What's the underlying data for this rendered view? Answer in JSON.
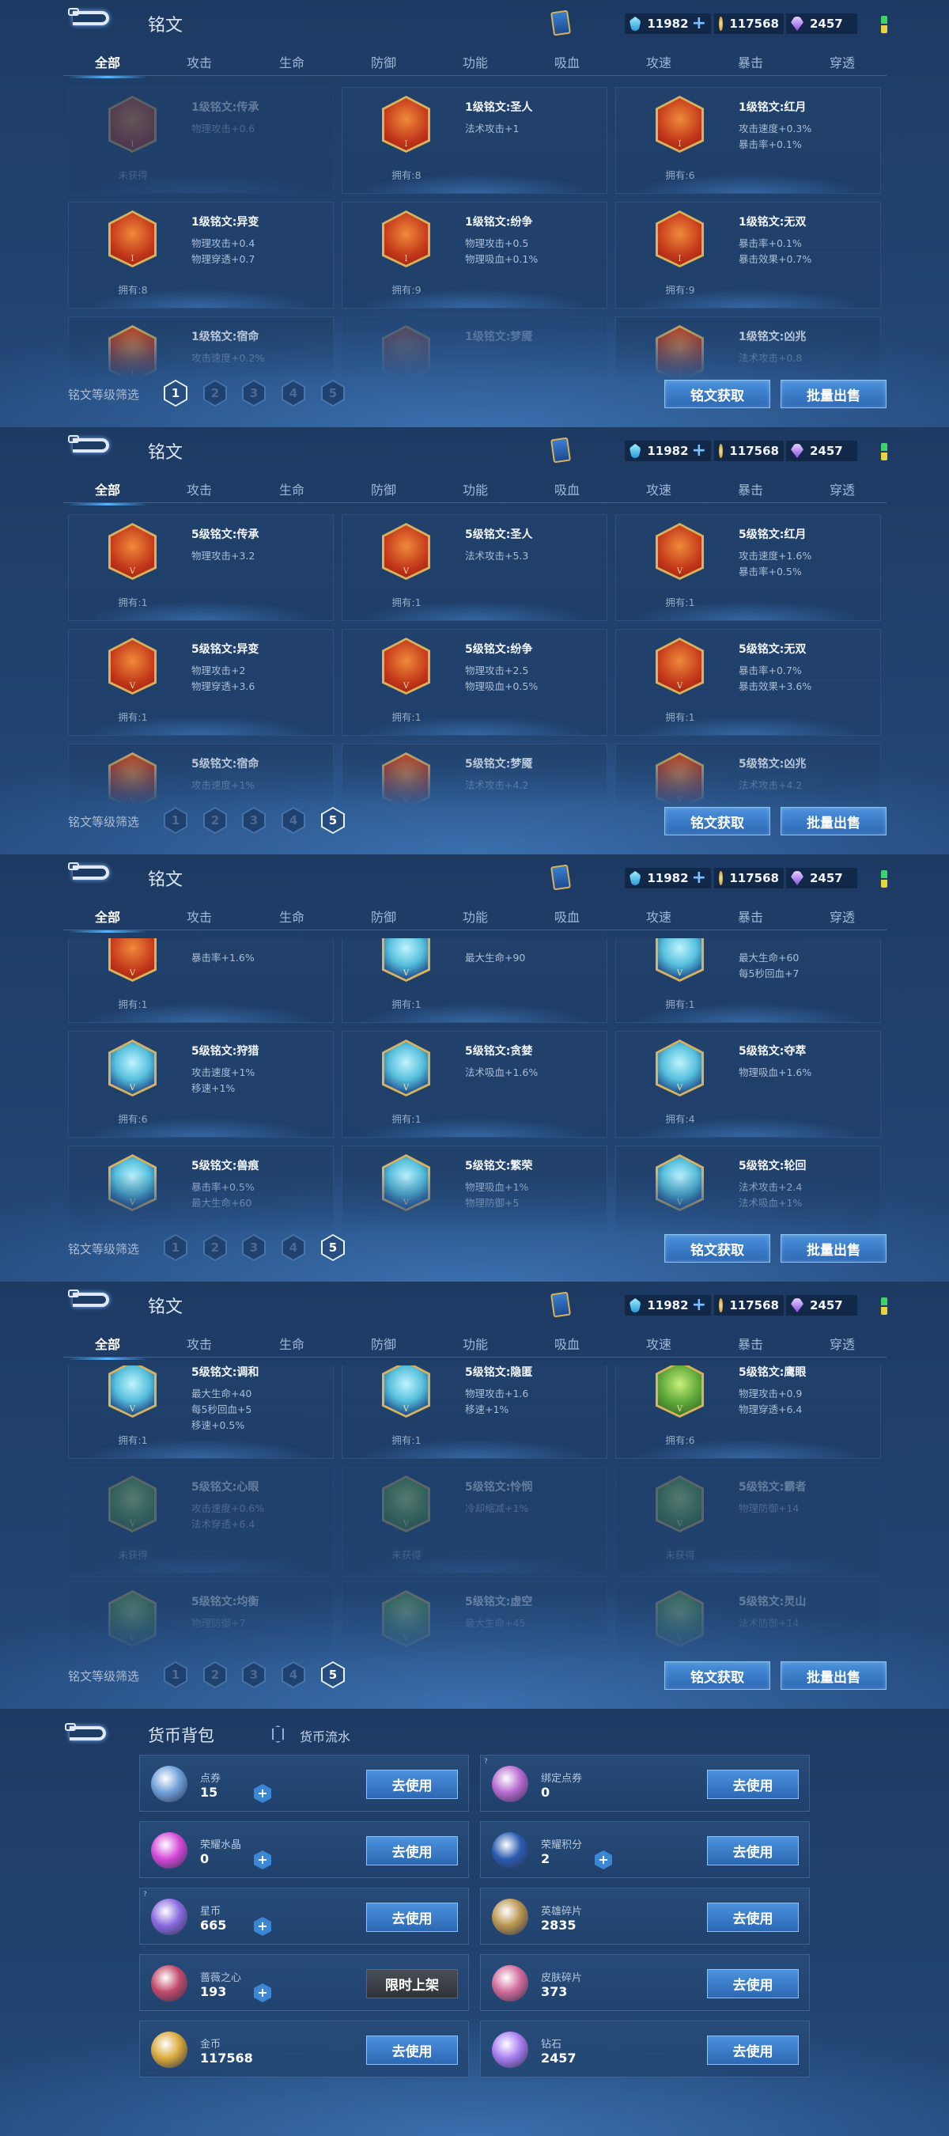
{
  "rune_header": {
    "title": "铭文",
    "card_icon": "rune-card-icon",
    "currencies": [
      {
        "icon": "diamond",
        "value": "11982",
        "plus": "+"
      },
      {
        "icon": "gold",
        "value": "117568"
      },
      {
        "icon": "gem",
        "value": "2457"
      }
    ],
    "tabs": [
      "全部",
      "攻击",
      "生命",
      "防御",
      "功能",
      "吸血",
      "攻速",
      "暴击",
      "穿透"
    ],
    "active_tab": "全部",
    "filter_label": "铭文等级筛选",
    "levels": [
      "1",
      "2",
      "3",
      "4",
      "5"
    ],
    "buttons": [
      "铭文获取",
      "批量出售"
    ]
  },
  "panels": [
    {
      "selected_level": "1",
      "rows": [
        [
          {
            "name": "1级铭文:传承",
            "stats": [
              "物理攻击+0.6"
            ],
            "owned": "未获得",
            "color": "red",
            "locked": true,
            "numeral": "I"
          },
          {
            "name": "1级铭文:圣人",
            "stats": [
              "法术攻击+1"
            ],
            "owned": "拥有:8",
            "color": "red",
            "numeral": "I"
          },
          {
            "name": "1级铭文:红月",
            "stats": [
              "攻击速度+0.3%",
              "暴击率+0.1%"
            ],
            "owned": "拥有:6",
            "color": "red",
            "numeral": "I"
          }
        ],
        [
          {
            "name": "1级铭文:异变",
            "stats": [
              "物理攻击+0.4",
              "物理穿透+0.7"
            ],
            "owned": "拥有:8",
            "color": "red",
            "numeral": "I"
          },
          {
            "name": "1级铭文:纷争",
            "stats": [
              "物理攻击+0.5",
              "物理吸血+0.1%"
            ],
            "owned": "拥有:9",
            "color": "red",
            "numeral": "I"
          },
          {
            "name": "1级铭文:无双",
            "stats": [
              "暴击率+0.1%",
              "暴击效果+0.7%"
            ],
            "owned": "拥有:9",
            "color": "red",
            "numeral": "I"
          }
        ],
        [
          {
            "name": "1级铭文:宿命",
            "stats": [
              "攻击速度+0.2%"
            ],
            "color": "red",
            "numeral": "I"
          },
          {
            "name": "1级铭文:梦魇",
            "stats": [],
            "color": "red",
            "locked": true,
            "numeral": "I"
          },
          {
            "name": "1级铭文:凶兆",
            "stats": [
              "法术攻击+0.8"
            ],
            "color": "red",
            "numeral": "I"
          }
        ]
      ]
    },
    {
      "selected_level": "5",
      "rows": [
        [
          {
            "name": "5级铭文:传承",
            "stats": [
              "物理攻击+3.2"
            ],
            "owned": "拥有:1",
            "color": "red",
            "numeral": "V"
          },
          {
            "name": "5级铭文:圣人",
            "stats": [
              "法术攻击+5.3"
            ],
            "owned": "拥有:1",
            "color": "red",
            "numeral": "V"
          },
          {
            "name": "5级铭文:红月",
            "stats": [
              "攻击速度+1.6%",
              "暴击率+0.5%"
            ],
            "owned": "拥有:1",
            "color": "red",
            "numeral": "V"
          }
        ],
        [
          {
            "name": "5级铭文:异变",
            "stats": [
              "物理攻击+2",
              "物理穿透+3.6"
            ],
            "owned": "拥有:1",
            "color": "red",
            "numeral": "V"
          },
          {
            "name": "5级铭文:纷争",
            "stats": [
              "物理攻击+2.5",
              "物理吸血+0.5%"
            ],
            "owned": "拥有:1",
            "color": "red",
            "numeral": "V"
          },
          {
            "name": "5级铭文:无双",
            "stats": [
              "暴击率+0.7%",
              "暴击效果+3.6%"
            ],
            "owned": "拥有:1",
            "color": "red",
            "numeral": "V"
          }
        ],
        [
          {
            "name": "5级铭文:宿命",
            "stats": [
              "攻击速度+1%"
            ],
            "color": "red",
            "numeral": "V"
          },
          {
            "name": "5级铭文:梦魇",
            "stats": [
              "法术攻击+4.2"
            ],
            "color": "red",
            "numeral": "V"
          },
          {
            "name": "5级铭文:凶兆",
            "stats": [
              "法术攻击+4.2"
            ],
            "color": "red",
            "numeral": "V"
          }
        ]
      ]
    },
    {
      "selected_level": "5",
      "rows": [
        [
          {
            "name": "",
            "stats": [
              "暴击率+1.6%"
            ],
            "owned": "拥有:1",
            "color": "red",
            "numeral": "V"
          },
          {
            "name": "",
            "stats": [
              "最大生命+90"
            ],
            "owned": "拥有:1",
            "color": "blue",
            "numeral": "V"
          },
          {
            "name": "",
            "stats": [
              "最大生命+60",
              "每5秒回血+7"
            ],
            "owned": "拥有:1",
            "color": "blue",
            "numeral": "V"
          }
        ],
        [
          {
            "name": "5级铭文:狩猎",
            "stats": [
              "攻击速度+1%",
              "移速+1%"
            ],
            "owned": "拥有:6",
            "color": "blue",
            "numeral": "V"
          },
          {
            "name": "5级铭文:贪婪",
            "stats": [
              "法术吸血+1.6%"
            ],
            "owned": "拥有:1",
            "color": "blue",
            "numeral": "V"
          },
          {
            "name": "5级铭文:夺萃",
            "stats": [
              "物理吸血+1.6%"
            ],
            "owned": "拥有:4",
            "color": "blue",
            "numeral": "V"
          }
        ],
        [
          {
            "name": "5级铭文:兽痕",
            "stats": [
              "暴击率+0.5%",
              "最大生命+60"
            ],
            "color": "blue",
            "numeral": "V"
          },
          {
            "name": "5级铭文:繁荣",
            "stats": [
              "物理吸血+1%",
              "物理防御+5"
            ],
            "color": "blue",
            "numeral": "V"
          },
          {
            "name": "5级铭文:轮回",
            "stats": [
              "法术攻击+2.4",
              "法术吸血+1%"
            ],
            "color": "blue",
            "numeral": "V"
          }
        ]
      ]
    },
    {
      "selected_level": "5",
      "rows": [
        [
          {
            "name": "5级铭文:调和",
            "stats": [
              "最大生命+40",
              "每5秒回血+5",
              "移速+0.5%"
            ],
            "owned": "拥有:1",
            "color": "blue",
            "numeral": "V"
          },
          {
            "name": "5级铭文:隐匿",
            "stats": [
              "物理攻击+1.6",
              "移速+1%"
            ],
            "owned": "拥有:1",
            "color": "blue",
            "numeral": "V"
          },
          {
            "name": "5级铭文:鹰眼",
            "stats": [
              "物理攻击+0.9",
              "物理穿透+6.4"
            ],
            "owned": "拥有:6",
            "color": "green",
            "numeral": "V"
          }
        ],
        [
          {
            "name": "5级铭文:心眼",
            "stats": [
              "攻击速度+0.6%",
              "法术穿透+6.4"
            ],
            "owned": "未获得",
            "color": "green",
            "locked": true,
            "numeral": "V"
          },
          {
            "name": "5级铭文:怜悯",
            "stats": [
              "冷却缩减+1%"
            ],
            "owned": "未获得",
            "color": "green",
            "locked": true,
            "numeral": "V"
          },
          {
            "name": "5级铭文:霸者",
            "stats": [
              "物理防御+14"
            ],
            "owned": "未获得",
            "color": "green",
            "locked": true,
            "numeral": "V"
          }
        ],
        [
          {
            "name": "5级铭文:均衡",
            "stats": [
              "物理防御+7"
            ],
            "color": "green",
            "locked": true,
            "numeral": "V"
          },
          {
            "name": "5级铭文:虚空",
            "stats": [
              "最大生命+45"
            ],
            "color": "green",
            "locked": true,
            "numeral": "V"
          },
          {
            "name": "5级铭文:灵山",
            "stats": [
              "法术防御+14"
            ],
            "color": "green",
            "locked": true,
            "numeral": "V"
          }
        ]
      ]
    }
  ],
  "currency_bag": {
    "title": "货币背包",
    "ledger_label": "货币流水",
    "items": [
      {
        "name": "点券",
        "value": "15",
        "icon": "coupon",
        "plus": true,
        "button": "去使用",
        "color": "#6f9fd8"
      },
      {
        "name": "绑定点券",
        "value": "0",
        "icon": "bound-coupon",
        "help": true,
        "button": "去使用",
        "color": "#b76ad0"
      },
      {
        "name": "荣耀水晶",
        "value": "0",
        "icon": "glory-crystal",
        "plus": true,
        "button": "去使用",
        "color": "#d548d8"
      },
      {
        "name": "荣耀积分",
        "value": "2",
        "icon": "glory-points",
        "plus": true,
        "button": "去使用",
        "color": "#2b5bb0"
      },
      {
        "name": "星币",
        "value": "665",
        "icon": "star-coin",
        "plus": true,
        "help": true,
        "button": "去使用",
        "color": "#8a6ae0"
      },
      {
        "name": "英雄碎片",
        "value": "2835",
        "icon": "hero-fragment",
        "button": "去使用",
        "color": "#b89550"
      },
      {
        "name": "蔷薇之心",
        "value": "193",
        "icon": "rose-heart",
        "plus": true,
        "button": "限时上架",
        "button_style": "gray",
        "color": "#c04a6a"
      },
      {
        "name": "皮肤碎片",
        "value": "373",
        "icon": "skin-fragment",
        "button": "去使用",
        "color": "#d06a9a"
      },
      {
        "name": "金币",
        "value": "117568",
        "icon": "gold-coin",
        "button": "去使用",
        "color": "#d9a83a"
      },
      {
        "name": "钻石",
        "value": "2457",
        "icon": "diamond",
        "button": "去使用",
        "color": "#a77cf0"
      }
    ]
  }
}
